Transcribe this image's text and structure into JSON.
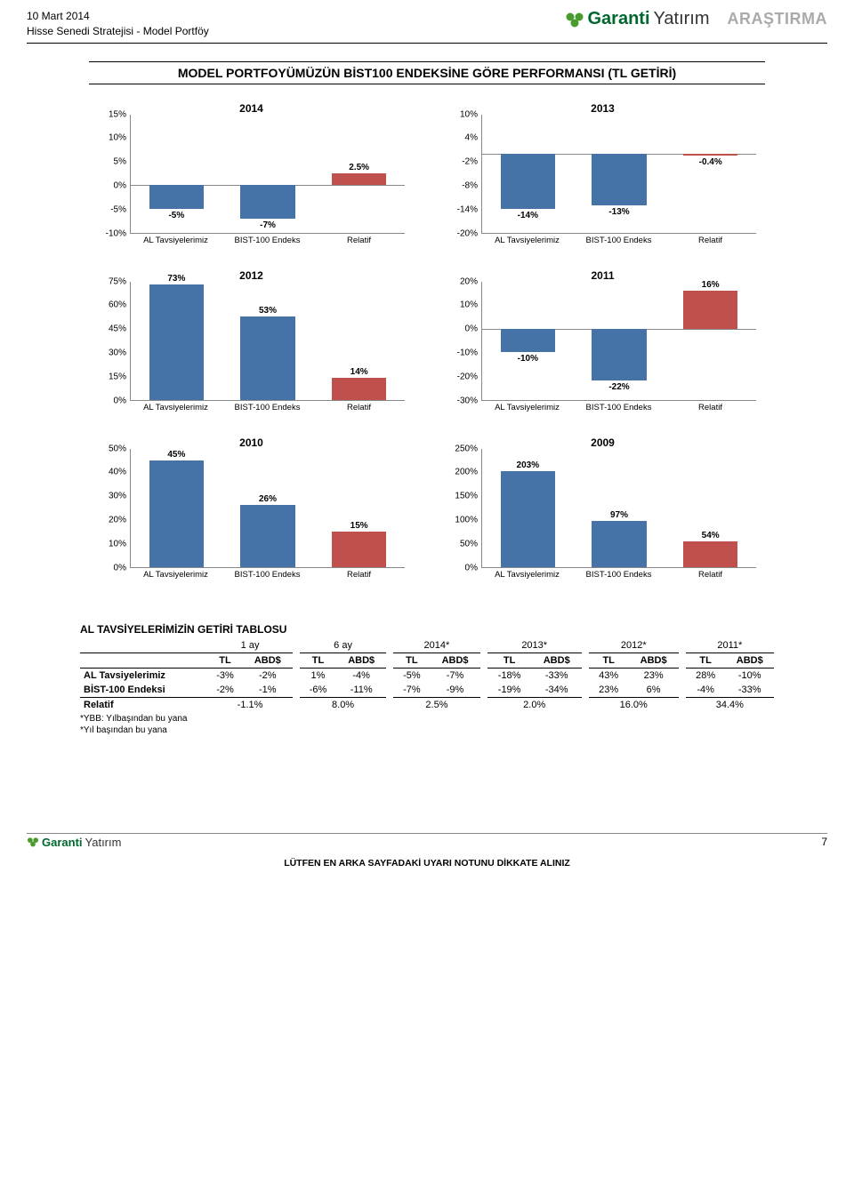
{
  "header": {
    "date": "10 Mart 2014",
    "subtitle": "Hisse Senedi Stratejisi - Model Portföy",
    "brand": "Garanti",
    "brand_suffix": "Yatırım",
    "research": "ARAŞTIRMA"
  },
  "section_title": "MODEL PORTFOYÜMÜZÜN BİST100 ENDEKSİNE GÖRE PERFORMANSI (TL GETİRİ)",
  "chart_common": {
    "categories": [
      "AL Tavsiyelerimiz",
      "BIST-100 Endeks",
      "Relatif"
    ],
    "bar_colors": [
      "#4573a7",
      "#4573a7",
      "#c0504d"
    ],
    "axis_color": "#888888",
    "label_fontsize": 10
  },
  "charts": [
    {
      "title": "2014",
      "values": [
        -5,
        -7,
        2.5
      ],
      "labels": [
        "-5%",
        "-7%",
        "2.5%"
      ],
      "ymin": -10,
      "ymax": 15,
      "ystep": 5
    },
    {
      "title": "2013",
      "values": [
        -14,
        -13,
        -0.4
      ],
      "labels": [
        "-14%",
        "-13%",
        "-0.4%"
      ],
      "ymin": -20,
      "ymax": 10,
      "ystep": 6
    },
    {
      "title": "2012",
      "values": [
        73,
        53,
        14
      ],
      "labels": [
        "73%",
        "53%",
        "14%"
      ],
      "ymin": 0,
      "ymax": 75,
      "ystep": 15
    },
    {
      "title": "2011",
      "values": [
        -10,
        -22,
        16
      ],
      "labels": [
        "-10%",
        "-22%",
        "16%"
      ],
      "ymin": -30,
      "ymax": 20,
      "ystep": 10
    },
    {
      "title": "2010",
      "values": [
        45,
        26,
        15
      ],
      "labels": [
        "45%",
        "26%",
        "15%"
      ],
      "ymin": 0,
      "ymax": 50,
      "ystep": 10
    },
    {
      "title": "2009",
      "values": [
        203,
        97,
        54
      ],
      "labels": [
        "203%",
        "97%",
        "54%"
      ],
      "ymin": 0,
      "ymax": 250,
      "ystep": 50
    }
  ],
  "table": {
    "title": "AL TAVSİYELERİMİZİN GETİRİ TABLOSU",
    "group_headers": [
      "1 ay",
      "6 ay",
      "2014*",
      "2013*",
      "2012*",
      "2011*"
    ],
    "sub_headers": [
      "TL",
      "ABD$"
    ],
    "row_labels": [
      "AL Tavsiyelerimiz",
      "BİST-100 Endeksi",
      "Relatif"
    ],
    "rows": [
      [
        "-3%",
        "-2%",
        "1%",
        "-4%",
        "-5%",
        "-7%",
        "-18%",
        "-33%",
        "43%",
        "23%",
        "28%",
        "-10%"
      ],
      [
        "-2%",
        "-1%",
        "-6%",
        "-11%",
        "-7%",
        "-9%",
        "-19%",
        "-34%",
        "23%",
        "6%",
        "-4%",
        "-33%"
      ]
    ],
    "relatif_row": [
      "-1.1%",
      "8.0%",
      "2.5%",
      "2.0%",
      "16.0%",
      "34.4%"
    ],
    "footnote1": "*YBB: Yılbaşından bu yana",
    "footnote2": "*Yıl başından bu yana"
  },
  "footer": {
    "brand": "Garanti",
    "brand_suffix": "Yatırım",
    "page": "7",
    "disclaimer": "LÜTFEN EN ARKA SAYFADAKİ UYARI NOTUNU DİKKATE ALINIZ"
  }
}
